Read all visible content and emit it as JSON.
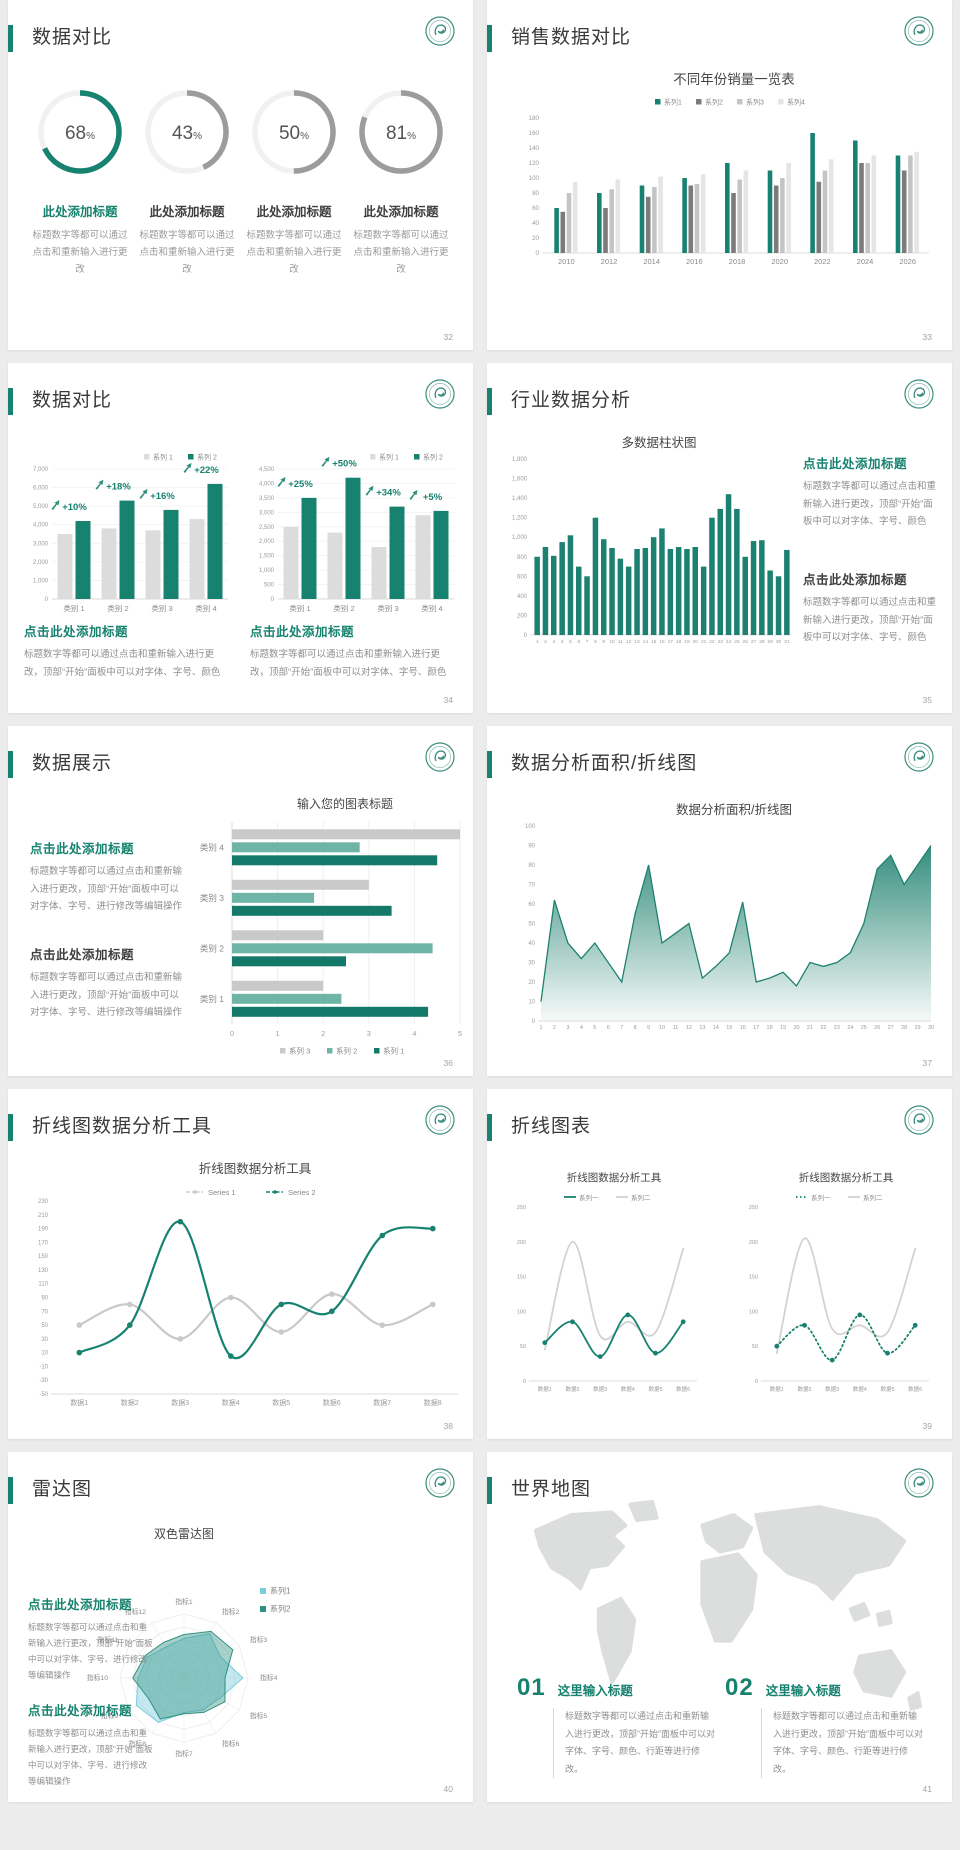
{
  "colors": {
    "teal": "#17826f",
    "teal_light": "#6eb5a7",
    "teal_dark": "#15796a",
    "radar_blue": "#7cccdb",
    "gray_dark": "#7b7b7b",
    "gray_mid": "#c4c4c4",
    "gray_light": "#e5e5e5",
    "bar_gray": "#dcdcdc",
    "line_gray": "#d2d2d2",
    "text_dark": "#3f3f3f",
    "text_gray": "#8f8f8f",
    "axis": "#9b9b9b"
  },
  "slides": [
    {
      "title": "数据对比",
      "page": "32",
      "donuts": [
        {
          "value": 68,
          "unit": "%",
          "heading": "此处添加标题",
          "desc": "标题数字等都可以通过点击和重新输入进行更改",
          "accent": true
        },
        {
          "value": 43,
          "unit": "%",
          "heading": "此处添加标题",
          "desc": "标题数字等都可以通过点击和重新输入进行更改",
          "accent": false
        },
        {
          "value": 50,
          "unit": "%",
          "heading": "此处添加标题",
          "desc": "标题数字等都可以通过点击和重新输入进行更改",
          "accent": false
        },
        {
          "value": 81,
          "unit": "%",
          "heading": "此处添加标题",
          "desc": "标题数字等都可以通过点击和重新输入进行更改",
          "accent": false
        }
      ],
      "chart_data": {
        "type": "pie",
        "note": "four progress donuts",
        "values": [
          68,
          43,
          50,
          81
        ],
        "unit": "%"
      }
    },
    {
      "title": "销售数据对比",
      "page": "33",
      "chart_data": {
        "type": "bar",
        "title": "不同年份销量一览表",
        "categories": [
          "2010",
          "2012",
          "2014",
          "2016",
          "2018",
          "2020",
          "2022",
          "2024",
          "2026"
        ],
        "series": [
          {
            "name": "系列1",
            "color": "#17826f",
            "values": [
              60,
              80,
              90,
              100,
              120,
              110,
              160,
              150,
              130
            ]
          },
          {
            "name": "系列2",
            "color": "#7b7b7b",
            "values": [
              55,
              60,
              75,
              90,
              80,
              90,
              95,
              120,
              110
            ]
          },
          {
            "name": "系列3",
            "color": "#c4c4c4",
            "values": [
              80,
              85,
              88,
              92,
              98,
              100,
              110,
              120,
              130
            ]
          },
          {
            "name": "系列4",
            "color": "#e5e5e5",
            "values": [
              95,
              98,
              102,
              105,
              110,
              120,
              125,
              130,
              135
            ]
          }
        ],
        "ylim": [
          0,
          180
        ],
        "ystep": 20,
        "legend_position": "top"
      }
    },
    {
      "title": "数据对比",
      "page": "34",
      "chart_data": [
        {
          "type": "bar",
          "legend": [
            "系列 1",
            "系列 2"
          ],
          "categories": [
            "类别 1",
            "类别 2",
            "类别 3",
            "类别 4"
          ],
          "series1": [
            3500,
            3800,
            3700,
            4300
          ],
          "series2": [
            4200,
            5300,
            4800,
            6200
          ],
          "labels": [
            "+10%",
            "+18%",
            "+16%",
            "+22%"
          ],
          "ylim": [
            0,
            7000
          ],
          "ystep": 1000
        },
        {
          "type": "bar",
          "legend": [
            "系列 1",
            "系列 2"
          ],
          "categories": [
            "类别 1",
            "类别 2",
            "类别 3",
            "类别 4"
          ],
          "series1": [
            2500,
            2300,
            1800,
            2900
          ],
          "series2": [
            3500,
            4200,
            3200,
            3050
          ],
          "labels": [
            "+25%",
            "+50%",
            "+34%",
            "+5%"
          ],
          "ylim": [
            0,
            4500
          ],
          "ystep": 500
        }
      ],
      "blocks": [
        {
          "heading": "点击此处添加标题",
          "body": "标题数字等都可以通过点击和重新输入进行更改，顶部“开始”面板中可以对字体、字号、颜色",
          "accent": true
        },
        {
          "heading": "点击此处添加标题",
          "body": "标题数字等都可以通过点击和重新输入进行更改，顶部“开始”面板中可以对字体、字号、颜色",
          "accent": true
        }
      ]
    },
    {
      "title": "行业数据分析",
      "page": "35",
      "chart_data": {
        "type": "bar",
        "title": "多数据柱状图",
        "color": "#1c8171",
        "categories": [
          1,
          2,
          3,
          4,
          5,
          6,
          7,
          8,
          9,
          10,
          11,
          12,
          13,
          14,
          15,
          16,
          17,
          18,
          19,
          20,
          21,
          22,
          23,
          24,
          25,
          26,
          27,
          28,
          29,
          30,
          31
        ],
        "values": [
          800,
          900,
          810,
          950,
          1020,
          700,
          600,
          1200,
          980,
          890,
          780,
          700,
          880,
          890,
          1000,
          1090,
          880,
          900,
          880,
          900,
          700,
          1200,
          1290,
          1440,
          1290,
          800,
          960,
          970,
          660,
          600,
          870
        ],
        "ylim": [
          0,
          1800
        ],
        "ystep": 200
      },
      "blocks": [
        {
          "heading": "点击此处添加标题",
          "body": "标题数字等都可以通过点击和重新输入进行更改，顶部“开始”面板中可以对字体、字号、颜色",
          "accent": true
        },
        {
          "heading": "点击此处添加标题",
          "body": "标题数字等都可以通过点击和重新输入进行更改，顶部“开始”面板中可以对字体、字号、颜色",
          "accent": false
        }
      ]
    },
    {
      "title": "数据展示",
      "page": "36",
      "chart_data": {
        "type": "bar",
        "orientation": "horizontal",
        "title": "输入您的图表标题",
        "categories": [
          "类别 4",
          "类别 3",
          "类别 2",
          "类别 1"
        ],
        "series": [
          {
            "name": "系列 3",
            "color": "#c9c9c9",
            "values": [
              5,
              3,
              2,
              2
            ]
          },
          {
            "name": "系列 2",
            "color": "#6eb5a7",
            "values": [
              2.8,
              1.8,
              4.4,
              2.4
            ]
          },
          {
            "name": "系列 1",
            "color": "#15796a",
            "values": [
              4.5,
              3.5,
              2.5,
              4.3
            ]
          }
        ],
        "xlim": [
          0,
          5
        ],
        "xstep": 1,
        "legend_position": "bottom"
      },
      "blocks": [
        {
          "heading": "点击此处添加标题",
          "body": "标题数字等都可以通过点击和重新输入进行更改，顶部“开始”面板中可以对字体、字号、进行修改等编辑操作",
          "accent": true
        },
        {
          "heading": "点击此处添加标题",
          "body": "标题数字等都可以通过点击和重新输入进行更改，顶部“开始”面板中可以对字体、字号、进行修改等编辑操作",
          "accent": false
        }
      ]
    },
    {
      "title": "数据分析面积/折线图",
      "page": "37",
      "chart_data": {
        "type": "area",
        "title": "数据分析面积/折线图",
        "color": "#1f816f",
        "x": [
          1,
          2,
          3,
          4,
          5,
          6,
          7,
          8,
          9,
          10,
          11,
          12,
          13,
          14,
          15,
          16,
          17,
          18,
          19,
          20,
          21,
          22,
          23,
          24,
          25,
          26,
          27,
          28,
          29,
          30
        ],
        "values": [
          10,
          62,
          40,
          32,
          40,
          30,
          20,
          55,
          80,
          40,
          45,
          50,
          22,
          28,
          35,
          61,
          20,
          22,
          25,
          18,
          30,
          28,
          30,
          35,
          50,
          78,
          85,
          70,
          80,
          90
        ],
        "ylim": [
          0,
          100
        ],
        "ystep": 10
      }
    },
    {
      "title": "折线图数据分析工具",
      "page": "38",
      "chart_data": {
        "type": "line",
        "title": "折线图数据分析工具",
        "categories": [
          "数据1",
          "数据2",
          "数据3",
          "数据4",
          "数据5",
          "数据6",
          "数据7",
          "数据8"
        ],
        "series": [
          {
            "name": "Series 1",
            "color": "#c9c9c9",
            "values": [
              50,
              80,
              30,
              90,
              40,
              95,
              50,
              80
            ]
          },
          {
            "name": "Series 2",
            "color": "#17826f",
            "values": [
              10,
              50,
              200,
              5,
              80,
              70,
              180,
              190
            ]
          }
        ],
        "ylim": [
          -50,
          230
        ],
        "ystep": 20,
        "legend_position": "top"
      }
    },
    {
      "title": "折线图表",
      "page": "39",
      "chart_data": [
        {
          "type": "line",
          "title": "折线图数据分析工具",
          "categories": [
            "数据1",
            "数据2",
            "数据3",
            "数据4",
            "数据5",
            "数据6"
          ],
          "series": [
            {
              "name": "系列一",
              "color": "#17826f",
              "values": [
                55,
                85,
                35,
                95,
                40,
                85
              ],
              "markers": true,
              "dotted": false
            },
            {
              "name": "系列二",
              "color": "#d2d2d2",
              "values": [
                45,
                200,
                65,
                85,
                70,
                190
              ],
              "markers": false,
              "dotted": false
            }
          ],
          "ylim": [
            0,
            250
          ],
          "ystep": 50
        },
        {
          "type": "line",
          "title": "折线图数据分析工具",
          "categories": [
            "数据1",
            "数据2",
            "数据3",
            "数据4",
            "数据5",
            "数据6"
          ],
          "series": [
            {
              "name": "系列一",
              "color": "#17826f",
              "values": [
                50,
                80,
                30,
                95,
                40,
                80
              ],
              "markers": true,
              "dotted": true
            },
            {
              "name": "系列二",
              "color": "#d2d2d2",
              "values": [
                40,
                205,
                75,
                80,
                70,
                190
              ],
              "markers": false,
              "dotted": false
            }
          ],
          "ylim": [
            0,
            250
          ],
          "ystep": 50
        }
      ]
    },
    {
      "title": "雷达图",
      "page": "40",
      "chart_data": {
        "type": "radar",
        "title": "双色雷达图",
        "rmax": 5,
        "axes": [
          "指标1",
          "指标2",
          "指标3",
          "指标4",
          "指标5",
          "指标6",
          "指标7",
          "指标8",
          "指标9",
          "指标10",
          "指标11",
          "指标12"
        ],
        "series": [
          {
            "name": "系列1",
            "color": "#7cccdb",
            "values": [
              3.1,
              4.0,
              3.3,
              4.6,
              3.2,
              2.9,
              2.7,
              4.0,
              4.3,
              3.6,
              3.3,
              2.8
            ]
          },
          {
            "name": "系列2",
            "color": "#2f9180",
            "values": [
              3.4,
              4.2,
              4.4,
              3.2,
              3.7,
              3.1,
              2.8,
              3.7,
              3.2,
              4.0,
              3.5,
              3.2
            ]
          }
        ]
      },
      "blocks": [
        {
          "heading": "点击此处添加标题",
          "body": "标题数字等都可以通过点击和重新输入进行更改，顶部“开始”面板中可以对字体、字号、进行修改等编辑操作",
          "accent": true
        },
        {
          "heading": "点击此处添加标题",
          "body": "标题数字等都可以通过点击和重新输入进行更改，顶部“开始”面板中可以对字体、字号、进行修改等编辑操作",
          "accent": true
        }
      ]
    },
    {
      "title": "世界地图",
      "page": "41",
      "items": [
        {
          "num": "01",
          "heading": "这里输入标题",
          "body": "标题数字等都可以通过点击和重新输入进行更改，顶部“开始”面板中可以对字体、字号、颜色、行距等进行修改。"
        },
        {
          "num": "02",
          "heading": "这里输入标题",
          "body": "标题数字等都可以通过点击和重新输入进行更改，顶部“开始”面板中可以对字体、字号、颜色、行距等进行修改。"
        }
      ]
    }
  ]
}
